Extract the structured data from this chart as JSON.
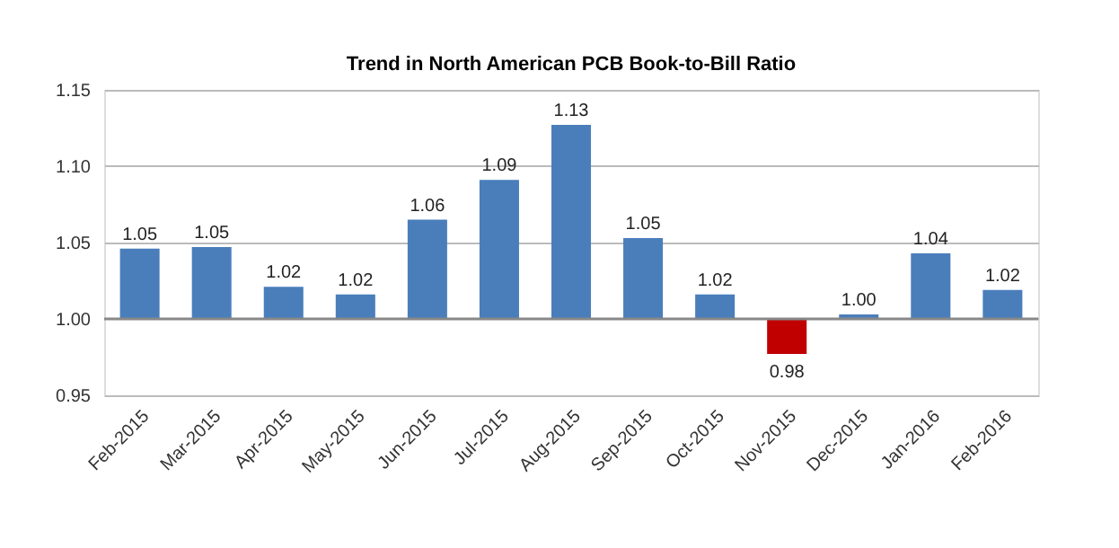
{
  "chart_data": {
    "type": "bar",
    "title": "Trend in North American PCB Book-to-Bill Ratio",
    "categories": [
      "Feb-2015",
      "Mar-2015",
      "Apr-2015",
      "May-2015",
      "Jun-2015",
      "Jul-2015",
      "Aug-2015",
      "Sep-2015",
      "Oct-2015",
      "Nov-2015",
      "Dec-2015",
      "Jan-2016",
      "Feb-2016"
    ],
    "base": [
      1.0,
      1.0,
      1.0,
      1.0,
      1.0,
      1.0,
      1.0,
      1.0,
      1.0,
      1.0,
      1.0,
      1.0,
      1.0
    ],
    "values": [
      0.046,
      0.047,
      0.021,
      0.016,
      0.065,
      0.091,
      0.127,
      0.053,
      0.016,
      -0.023,
      0.003,
      0.043,
      0.019
    ],
    "value_labels": [
      "1.05",
      "1.05",
      "1.02",
      "1.02",
      "1.06",
      "1.09",
      "1.13",
      "1.05",
      "1.02",
      "0.98",
      "1.00",
      "1.04",
      "1.02"
    ],
    "colors": [
      "#4a7ebb",
      "#4a7ebb",
      "#4a7ebb",
      "#4a7ebb",
      "#4a7ebb",
      "#4a7ebb",
      "#4a7ebb",
      "#4a7ebb",
      "#4a7ebb",
      "#c00000",
      "#4a7ebb",
      "#4a7ebb",
      "#4a7ebb"
    ],
    "ylim": [
      0.95,
      1.15
    ],
    "yticks": [
      {
        "value": 0.95,
        "label": "0.95"
      },
      {
        "value": 1.0,
        "label": "1.00"
      },
      {
        "value": 1.05,
        "label": "1.05"
      },
      {
        "value": 1.1,
        "label": "1.10"
      },
      {
        "value": 1.15,
        "label": "1.15"
      }
    ],
    "ref_lines": [
      {
        "axis": "y",
        "value": 1.0,
        "color": "#888888"
      }
    ],
    "grid": "y"
  }
}
